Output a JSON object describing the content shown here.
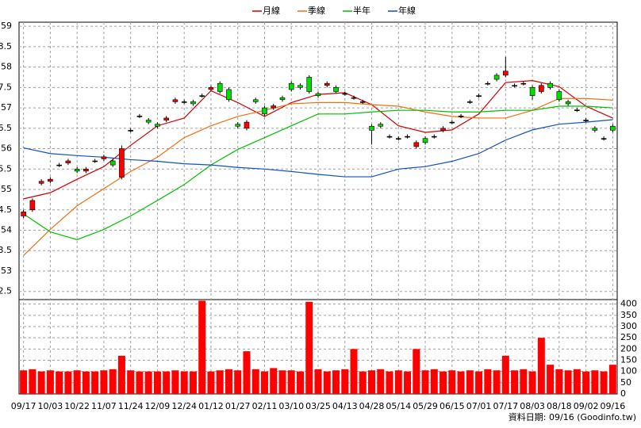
{
  "chart_data": {
    "type": "candlestick",
    "legend": [
      {
        "name": "月線",
        "color": "#d00000"
      },
      {
        "name": "季線",
        "color": "#f07010"
      },
      {
        "name": "半年",
        "color": "#00c000"
      },
      {
        "name": "年線",
        "color": "#1050c0"
      }
    ],
    "xlim": [
      -0.5,
      66.5
    ],
    "xticks": [
      {
        "value": 0,
        "label": "09/17"
      },
      {
        "value": 3,
        "label": "10/03"
      },
      {
        "value": 6,
        "label": "10/22"
      },
      {
        "value": 9,
        "label": "11/07"
      },
      {
        "value": 12,
        "label": "11/24"
      },
      {
        "value": 15,
        "label": "12/09"
      },
      {
        "value": 18,
        "label": "12/24"
      },
      {
        "value": 21,
        "label": "01/12"
      },
      {
        "value": 24,
        "label": "01/27"
      },
      {
        "value": 27,
        "label": "02/11"
      },
      {
        "value": 30,
        "label": "03/10"
      },
      {
        "value": 33,
        "label": "03/25"
      },
      {
        "value": 36,
        "label": "04/13"
      },
      {
        "value": 39,
        "label": "04/28"
      },
      {
        "value": 42,
        "label": "05/14"
      },
      {
        "value": 45,
        "label": "05/29"
      },
      {
        "value": 48,
        "label": "06/15"
      },
      {
        "value": 51,
        "label": "07/01"
      },
      {
        "value": 54,
        "label": "07/17"
      },
      {
        "value": 57,
        "label": "08/03"
      },
      {
        "value": 60,
        "label": "08/18"
      },
      {
        "value": 63,
        "label": "09/02"
      },
      {
        "value": 66,
        "label": "09/16"
      }
    ],
    "ylim": [
      52.3,
      59.1
    ],
    "yticks": [
      59,
      {
        "value": 58.5,
        "label": "8.5"
      },
      58,
      {
        "value": 57.5,
        "label": "7.5"
      },
      57,
      {
        "value": 56.5,
        "label": "6.5"
      },
      56,
      {
        "value": 55.5,
        "label": "5.5"
      },
      55,
      {
        "value": 54.5,
        "label": "4.5"
      },
      54,
      {
        "value": 53.5,
        "label": "3.5"
      },
      53,
      {
        "value": 52.5,
        "label": "2.5"
      }
    ],
    "up_color": "#ff0000",
    "down_color": "#00dd00",
    "open": [
      54.35,
      54.5,
      55.15,
      55.2,
      55.6,
      55.65,
      55.5,
      55.45,
      55.7,
      55.75,
      55.7,
      55.3,
      56.45,
      56.8,
      56.7,
      56.6,
      56.7,
      57.15,
      57.15,
      57.15,
      57.3,
      57.45,
      57.6,
      57.45,
      56.6,
      56.5,
      57.2,
      57.0,
      57.0,
      57.25,
      57.6,
      57.55,
      57.75,
      57.35,
      57.55,
      57.5,
      57.35,
      57.25,
      57.15,
      56.55,
      56.6,
      56.3,
      56.25,
      56.3,
      56.05,
      56.25,
      56.3,
      56.45,
      56.65,
      56.8,
      57.15,
      57.3,
      57.6,
      57.8,
      57.8,
      57.55,
      57.6,
      57.5,
      57.4,
      57.6,
      57.4,
      57.15,
      56.95,
      56.7,
      56.5,
      56.25,
      56.55
    ],
    "high": [
      54.5,
      54.78,
      55.25,
      55.3,
      55.65,
      55.75,
      55.55,
      55.55,
      55.75,
      55.85,
      55.75,
      56.08,
      56.5,
      56.85,
      56.75,
      56.65,
      56.8,
      57.25,
      57.2,
      57.2,
      57.35,
      57.55,
      57.65,
      57.5,
      56.65,
      56.7,
      57.25,
      57.05,
      57.1,
      57.3,
      57.65,
      57.6,
      57.8,
      57.4,
      57.65,
      57.55,
      57.4,
      57.3,
      57.2,
      56.6,
      56.65,
      56.35,
      56.3,
      56.35,
      56.2,
      56.3,
      56.35,
      56.55,
      56.7,
      56.85,
      57.2,
      57.35,
      57.65,
      57.85,
      58.25,
      57.6,
      57.65,
      57.55,
      57.6,
      57.65,
      57.45,
      57.2,
      57.0,
      56.75,
      56.55,
      56.3,
      56.6
    ],
    "low": [
      54.3,
      54.45,
      55.1,
      55.15,
      55.55,
      55.6,
      55.4,
      55.4,
      55.65,
      55.7,
      55.55,
      55.25,
      56.4,
      56.75,
      56.6,
      56.5,
      56.65,
      57.1,
      57.1,
      57.05,
      57.25,
      57.4,
      57.35,
      57.15,
      56.5,
      56.45,
      57.1,
      56.8,
      56.95,
      57.15,
      57.4,
      57.45,
      57.35,
      57.25,
      57.5,
      57.35,
      57.3,
      57.2,
      57.1,
      56.1,
      56.5,
      56.25,
      56.2,
      56.25,
      56.0,
      56.1,
      56.25,
      56.4,
      56.6,
      56.75,
      57.1,
      57.25,
      57.55,
      57.65,
      57.75,
      57.5,
      57.55,
      57.2,
      57.35,
      57.45,
      57.15,
      57.05,
      56.9,
      56.65,
      56.4,
      56.2,
      56.4
    ],
    "close": [
      54.45,
      54.73,
      55.2,
      55.25,
      55.6,
      55.7,
      55.45,
      55.5,
      55.7,
      55.8,
      55.6,
      56.0,
      56.45,
      56.8,
      56.65,
      56.55,
      56.75,
      57.2,
      57.15,
      57.1,
      57.3,
      57.5,
      57.4,
      57.2,
      56.55,
      56.65,
      57.15,
      56.85,
      57.05,
      57.2,
      57.45,
      57.5,
      57.4,
      57.3,
      57.6,
      57.4,
      57.35,
      57.25,
      57.15,
      56.45,
      56.55,
      56.3,
      56.25,
      56.3,
      56.15,
      56.15,
      56.3,
      56.5,
      56.65,
      56.8,
      57.15,
      57.3,
      57.6,
      57.7,
      57.9,
      57.55,
      57.6,
      57.3,
      57.55,
      57.5,
      57.2,
      57.1,
      56.95,
      56.7,
      56.45,
      56.25,
      56.45
    ],
    "series": [
      {
        "color": "#d00000",
        "x": [
          0,
          3,
          6,
          9,
          12,
          15,
          18,
          21,
          24,
          27,
          30,
          33,
          36,
          39,
          42,
          45,
          48,
          51,
          54,
          57,
          60,
          63,
          66
        ],
        "values": [
          54.77,
          54.92,
          55.25,
          55.56,
          56.08,
          56.56,
          56.75,
          57.42,
          57.13,
          56.79,
          57.13,
          57.33,
          57.37,
          57.08,
          56.56,
          56.4,
          56.46,
          56.85,
          57.62,
          57.67,
          57.52,
          57.04,
          56.75
        ]
      },
      {
        "color": "#f07010",
        "x": [
          0,
          3,
          6,
          9,
          12,
          15,
          18,
          21,
          24,
          27,
          30,
          33,
          36,
          39,
          42,
          45,
          48,
          51,
          54,
          57,
          60,
          63,
          66
        ],
        "values": [
          53.38,
          54.02,
          54.6,
          55.02,
          55.44,
          55.79,
          56.27,
          56.56,
          56.79,
          56.94,
          57.1,
          57.13,
          57.13,
          57.08,
          57.04,
          56.9,
          56.79,
          56.75,
          56.75,
          56.94,
          57.23,
          57.23,
          57.19
        ]
      },
      {
        "color": "#00c000",
        "x": [
          0,
          3,
          6,
          9,
          12,
          15,
          18,
          21,
          24,
          27,
          30,
          33,
          36,
          39,
          42,
          45,
          48,
          51,
          54,
          57,
          60,
          63,
          66
        ],
        "values": [
          54.4,
          53.96,
          53.77,
          54.02,
          54.35,
          54.73,
          55.12,
          55.6,
          55.98,
          56.27,
          56.56,
          56.85,
          56.85,
          56.9,
          56.94,
          56.94,
          56.9,
          56.9,
          56.94,
          56.94,
          57.04,
          57.04,
          57.0
        ]
      },
      {
        "color": "#1050c0",
        "x": [
          0,
          3,
          6,
          9,
          12,
          15,
          18,
          21,
          24,
          27,
          30,
          33,
          36,
          39,
          42,
          45,
          48,
          51,
          54,
          57,
          60,
          63,
          66
        ],
        "values": [
          56.02,
          55.88,
          55.83,
          55.79,
          55.73,
          55.69,
          55.63,
          55.6,
          55.54,
          55.5,
          55.44,
          55.37,
          55.31,
          55.31,
          55.5,
          55.56,
          55.69,
          55.88,
          56.21,
          56.46,
          56.6,
          56.65,
          56.71
        ]
      }
    ],
    "volume": {
      "color": "#ff0000",
      "values": [
        105,
        110,
        100,
        105,
        100,
        100,
        105,
        100,
        100,
        105,
        110,
        170,
        105,
        100,
        100,
        100,
        100,
        105,
        100,
        100,
        415,
        100,
        105,
        110,
        105,
        190,
        110,
        100,
        115,
        105,
        105,
        100,
        410,
        110,
        100,
        105,
        110,
        200,
        100,
        105,
        110,
        100,
        105,
        100,
        200,
        105,
        110,
        100,
        105,
        100,
        105,
        100,
        110,
        105,
        170,
        105,
        110,
        100,
        250,
        130,
        110,
        105,
        110,
        100,
        105,
        100,
        130
      ]
    },
    "y2lim": [
      0,
      420
    ],
    "y2ticks": [
      0,
      50,
      100,
      150,
      200,
      250,
      300,
      350,
      400
    ],
    "grid": true,
    "note": "資料日期: 09/16  (Goodinfo.tw)"
  }
}
